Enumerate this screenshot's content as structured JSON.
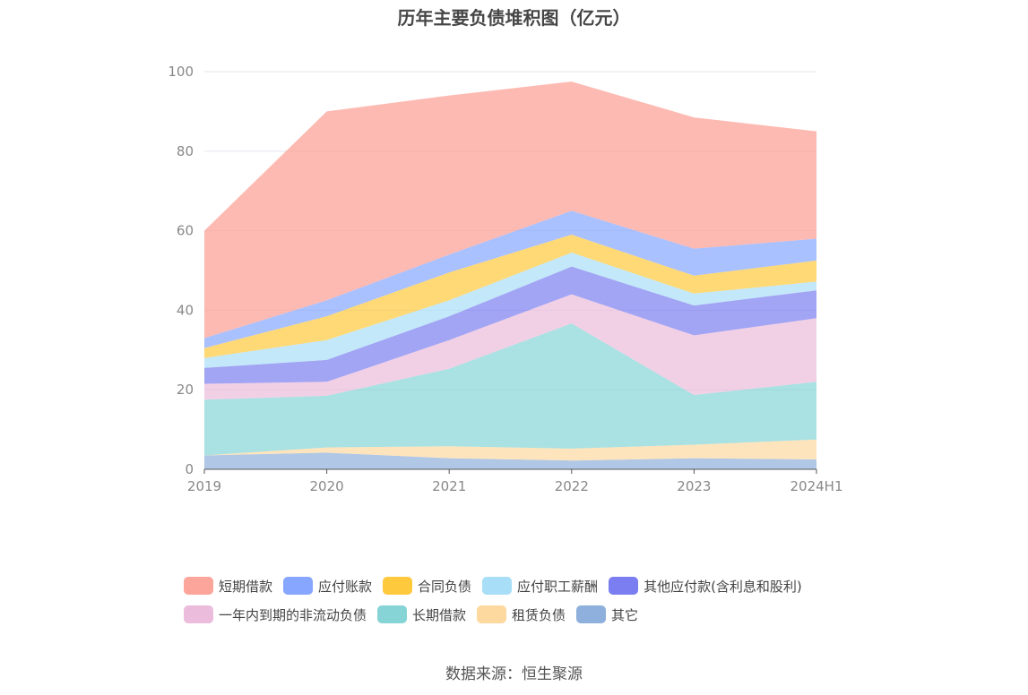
{
  "chart_data": {
    "type": "area",
    "stacked": true,
    "title": "历年主要负债堆积图（亿元）",
    "categories": [
      "2019",
      "2020",
      "2021",
      "2022",
      "2023",
      "2024H1"
    ],
    "ylim": [
      0,
      100
    ],
    "yticks": [
      "0",
      "20",
      "40",
      "60",
      "80",
      "100"
    ],
    "grid": true,
    "legend_position": "bottom",
    "series": [
      {
        "name": "其它",
        "color": "#8fb0dc",
        "values": [
          3.5,
          4.2,
          2.8,
          2.2,
          2.8,
          2.5
        ]
      },
      {
        "name": "租赁负债",
        "color": "#fdd9a0",
        "values": [
          0,
          1.3,
          3.0,
          3.0,
          3.4,
          5.0
        ]
      },
      {
        "name": "长期借款",
        "color": "#86d4d6",
        "values": [
          14.0,
          13.0,
          19.5,
          31.5,
          12.5,
          14.5
        ]
      },
      {
        "name": "一年内到期的非流动负债",
        "color": "#ebbcdc",
        "values": [
          4.0,
          3.5,
          7.2,
          7.3,
          15.0,
          16.0
        ]
      },
      {
        "name": "其他应付款(含利息和股利)",
        "color": "#7b7ef0",
        "values": [
          4.0,
          5.5,
          6.0,
          7.0,
          7.5,
          7.0
        ]
      },
      {
        "name": "应付职工薪酬",
        "color": "#a8def8",
        "values": [
          2.5,
          5.0,
          4.0,
          3.5,
          3.0,
          2.2
        ]
      },
      {
        "name": "合同负债",
        "color": "#fec93c",
        "values": [
          2.5,
          6.0,
          7.0,
          4.5,
          4.5,
          5.3
        ]
      },
      {
        "name": "应付账款",
        "color": "#86a6ff",
        "values": [
          2.5,
          4.0,
          4.5,
          6.0,
          6.8,
          5.5
        ]
      },
      {
        "name": "短期借款",
        "color": "#fc9c92",
        "values": [
          27.0,
          47.5,
          40.0,
          32.5,
          33.0,
          27.0
        ]
      }
    ]
  },
  "legend": {
    "row1": [
      {
        "label": "短期借款",
        "color": "#fba59b"
      },
      {
        "label": "应付账款",
        "color": "#86a6ff"
      },
      {
        "label": "合同负债",
        "color": "#fec93c"
      },
      {
        "label": "应付职工薪酬",
        "color": "#a8def8"
      },
      {
        "label": "其他应付款(含利息和股利)",
        "color": "#7b7ef0"
      }
    ],
    "row2": [
      {
        "label": "一年内到期的非流动负债",
        "color": "#ebbcdc"
      },
      {
        "label": "长期借款",
        "color": "#86d4d6"
      },
      {
        "label": "租赁负债",
        "color": "#fdd9a0"
      },
      {
        "label": "其它",
        "color": "#8fb0dc"
      }
    ]
  },
  "source_text": "数据来源：恒生聚源"
}
